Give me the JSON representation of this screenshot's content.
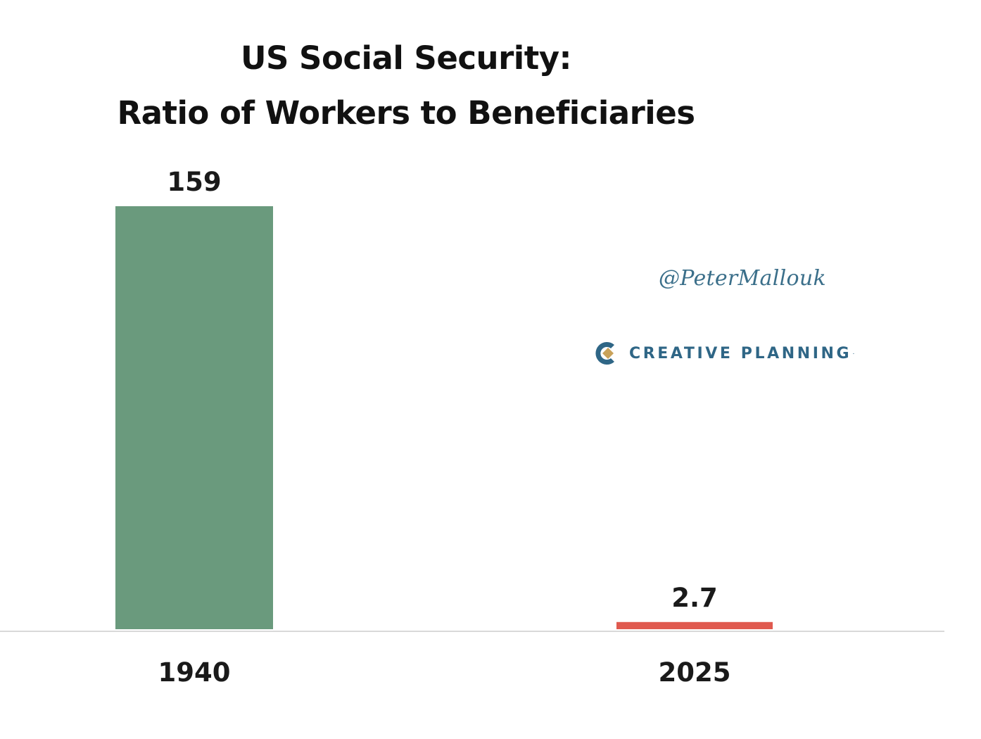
{
  "title": {
    "line1": "US Social Security:",
    "line2": "Ratio of Workers to Beneficiaries"
  },
  "watermark": {
    "handle": "@PeterMallouk",
    "brand": "CREATIVE PLANNING",
    "brand_mark": "·"
  },
  "colors": {
    "bar_1940": "#6a9a7d",
    "bar_2025": "#e05a4f",
    "axis": "#d9d9d9",
    "brand": "#2f6686"
  },
  "chart_data": {
    "type": "bar",
    "title": "US Social Security: Ratio of Workers to Beneficiaries",
    "categories": [
      "1940",
      "2025"
    ],
    "values": [
      159,
      2.7
    ],
    "value_labels": [
      "159",
      "2.7"
    ],
    "bar_colors": [
      "#6a9a7d",
      "#e05a4f"
    ],
    "ylim": [
      0,
      159
    ],
    "grid": false,
    "legend": "none"
  }
}
